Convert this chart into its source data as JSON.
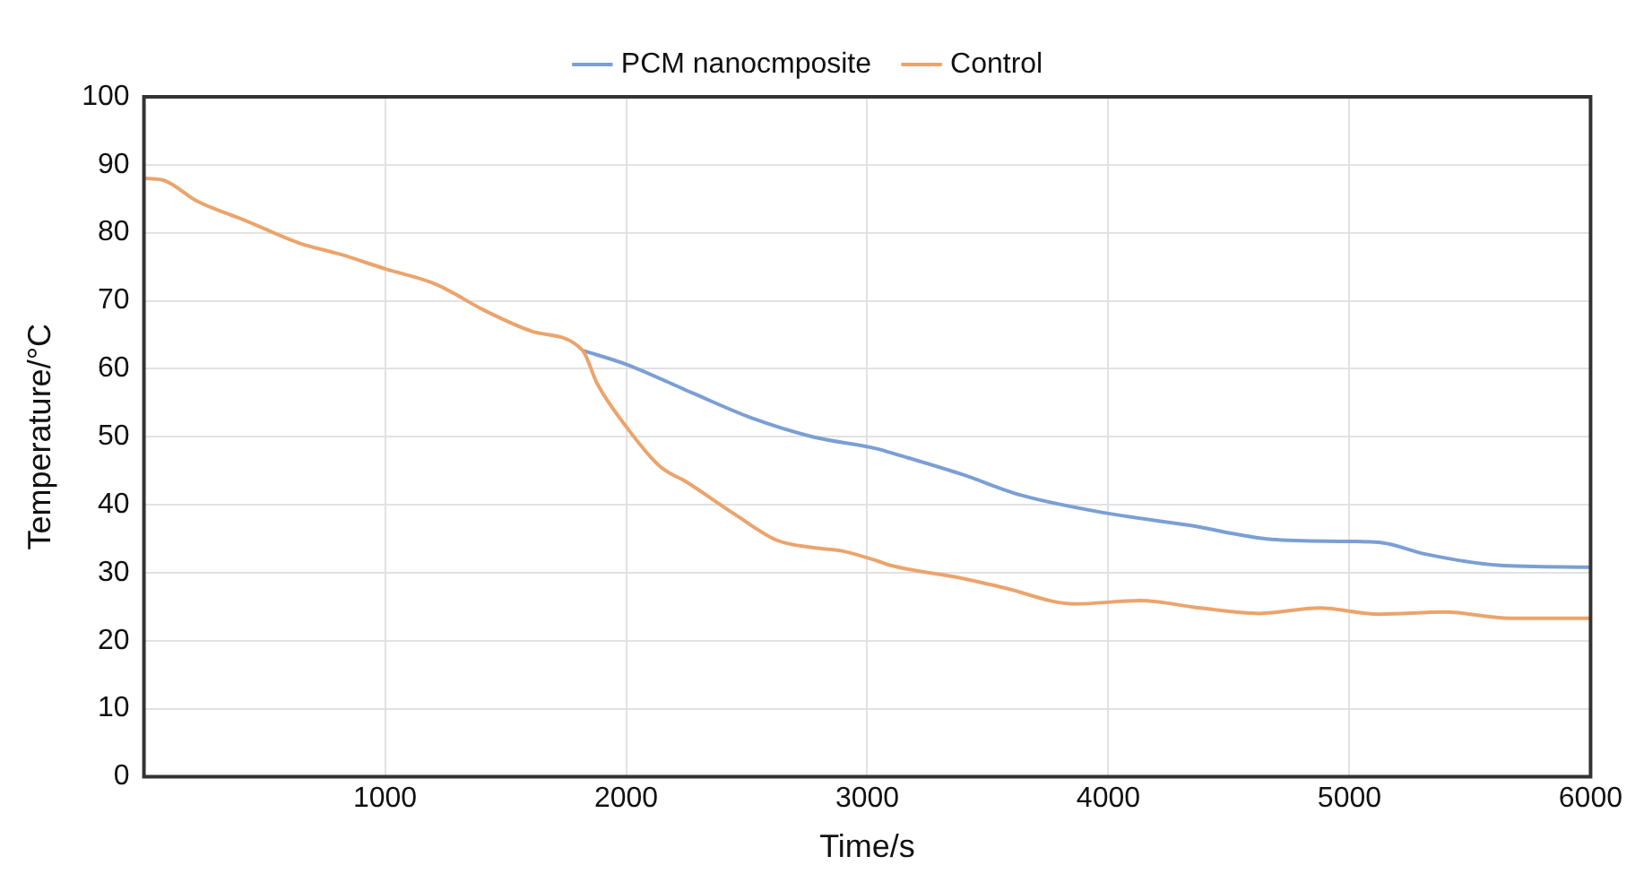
{
  "chart_data": {
    "type": "line",
    "xlabel": "Time/s",
    "ylabel": "Temperature/°C",
    "xlim": [
      0,
      6000
    ],
    "xticks": [
      1000,
      2000,
      3000,
      4000,
      5000,
      6000
    ],
    "ylim": [
      0,
      100
    ],
    "yticks": [
      0,
      10,
      20,
      30,
      40,
      50,
      60,
      70,
      80,
      90,
      100
    ],
    "grid": true,
    "legend": "top",
    "marker": "none",
    "line_style": "solid",
    "series": [
      {
        "name": "PCM nanocmposite",
        "color": "#7b9fd4",
        "x": [
          1819,
          2004,
          2277,
          2524,
          2772,
          3044,
          3093,
          3390,
          3638,
          3984,
          4330,
          4677,
          4999,
          5135,
          5320,
          5617,
          6000
        ],
        "values": [
          62.7,
          60.6,
          56.4,
          52.7,
          50,
          48.2,
          47.7,
          44.5,
          41.4,
          38.8,
          37,
          34.9,
          34.6,
          34.4,
          32.7,
          31.1,
          30.8
        ]
      },
      {
        "name": "Control",
        "color": "#eba46c",
        "x": [
          0,
          74,
          223,
          421,
          643,
          817,
          1000,
          1213,
          1411,
          1609,
          1819,
          1880,
          2004,
          2141,
          2252,
          2450,
          2623,
          2772,
          2895,
          3044,
          3093,
          3390,
          3564,
          3861,
          4133,
          4380,
          4627,
          4875,
          5122,
          5394,
          5666,
          6000
        ],
        "values": [
          88,
          87.8,
          84.6,
          81.8,
          78.5,
          76.8,
          74.7,
          72.4,
          68.6,
          65.5,
          62.7,
          57.8,
          51.3,
          45.6,
          43.3,
          38.6,
          34.8,
          33.7,
          33.2,
          31.7,
          31.1,
          29.2,
          27.8,
          25.4,
          25.9,
          24.8,
          24,
          24.8,
          23.9,
          24.2,
          23.3,
          23.3
        ]
      }
    ]
  }
}
